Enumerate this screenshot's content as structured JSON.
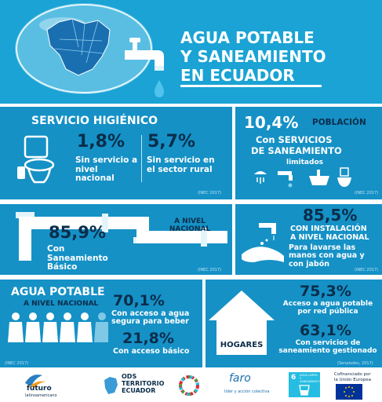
{
  "header": {
    "title_line1": "AGUA POTABLE",
    "title_line2": "Y SANEAMIENTO",
    "title_line3": "EN ECUADOR"
  },
  "higienico": {
    "title": "SERVICIO HIGIÉNICO",
    "pct_national": "1,8%",
    "label_national": "Sin servicio a nivel nacional",
    "pct_rural": "5,7%",
    "label_rural": "Sin servicio en el sector rural",
    "source": "(INEC 2017)"
  },
  "poblacion": {
    "pct": "10,4%",
    "word": "POBLACIÓN",
    "line1": "Con SERVICIOS",
    "line2": "DE SANEAMIENTO",
    "line3": "limitados",
    "source": "(INEC 2017)"
  },
  "basico": {
    "pct": "85,9%",
    "nivel": "A NIVEL NACIONAL",
    "label": "Con Saneamiento Básico",
    "source": "(INEC 2017)"
  },
  "lavado": {
    "pct": "85,5%",
    "title1": "CON INSTALACIÓN",
    "title2": "A NIVEL NACIONAL",
    "label": "Para lavarse las manos con agua y con jabón",
    "source": "(INEC 2017)"
  },
  "agua": {
    "title": "AGUA POTABLE",
    "subtitle": "A NIVEL NACIONAL",
    "pct_segura": "70,1%",
    "label_segura": "Con acceso a agua segura para beber",
    "pct_basico": "21,8%",
    "label_basico": "Con acceso básico",
    "source": "(INEC 2017)"
  },
  "hogares": {
    "label": "HOGARES",
    "pct_red": "75,3%",
    "label_red": "Acceso a agua potable por red pública",
    "pct_gestionado": "63,1%",
    "label_gestionado": "Con servicios de saneamiento gestionado",
    "source": "(Senplades, 2017)"
  },
  "footer": {
    "futuro": "futuro",
    "futuro_sub": "latinoamericano",
    "ods1": "ODS",
    "ods2": "TERRITORIO",
    "ods3": "ECUADOR",
    "faro": "faro",
    "faro_sub": "líder y acción colectiva",
    "sdg_num": "6",
    "sdg_text": "AGUA LIMPIA Y SANEAMIENTO",
    "eu_text1": "Cofinanciado por",
    "eu_text2": "la Unión Europea"
  },
  "colors": {
    "header_bg": "#1aa3d4",
    "panel_bg": "#1591c6",
    "dark_text": "#0b2d4a"
  }
}
